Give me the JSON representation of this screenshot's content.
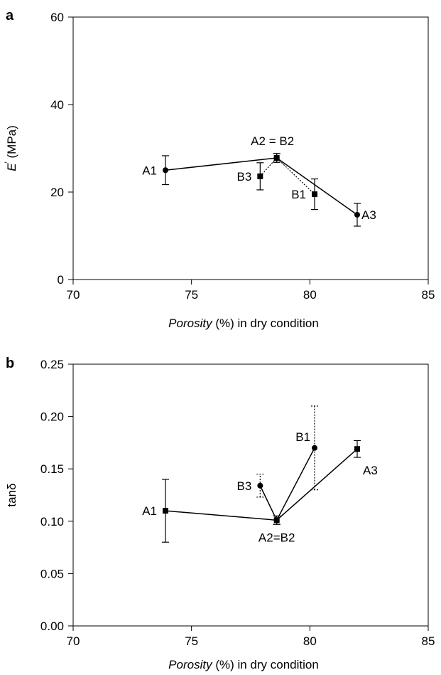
{
  "chart_data": [
    {
      "panel": "a",
      "type": "scatter",
      "xlabel_italic": "Porosity",
      "xlabel_rest": " (%) in dry condition",
      "ylabel_symbol": "E",
      "ylabel_prime": "′",
      "ylabel_rest": " (MPa)",
      "xlim": [
        70,
        85
      ],
      "ylim": [
        0,
        60
      ],
      "xticks": [
        "70",
        "75",
        "80",
        "85"
      ],
      "yticks": [
        "0",
        "20",
        "40",
        "60"
      ],
      "series": [
        {
          "marker": "circle",
          "line": "solid",
          "points": [
            {
              "x": 73.9,
              "y": 25.0,
              "err": 3.3
            },
            {
              "x": 78.6,
              "y": 27.8,
              "err": 1.0
            },
            {
              "x": 82.0,
              "y": 14.8,
              "err": 2.6
            }
          ]
        },
        {
          "marker": "square",
          "line": "dotted",
          "points": [
            {
              "x": 77.9,
              "y": 23.6,
              "err": 3.1
            },
            {
              "x": 78.6,
              "y": 27.8,
              "err": 1.0
            },
            {
              "x": 80.2,
              "y": 19.5,
              "err": 3.5
            }
          ]
        }
      ],
      "annotations": [
        {
          "text": "A1",
          "x": 73.9,
          "y": 25.0,
          "anchor": "left"
        },
        {
          "text": "A2 = B2",
          "x": 78.6,
          "y": 27.8,
          "anchor": "above"
        },
        {
          "text": "B3",
          "x": 77.9,
          "y": 23.6,
          "anchor": "left"
        },
        {
          "text": "B1",
          "x": 80.2,
          "y": 19.5,
          "anchor": "left"
        },
        {
          "text": "A3",
          "x": 82.0,
          "y": 14.8,
          "anchor": "right"
        }
      ]
    },
    {
      "panel": "b",
      "type": "scatter",
      "xlabel_italic": "Porosity",
      "xlabel_rest": " (%) in dry condition",
      "ylabel": "tanδ",
      "xlim": [
        70,
        85
      ],
      "ylim": [
        0,
        0.25
      ],
      "xticks": [
        "70",
        "75",
        "80",
        "85"
      ],
      "yticks": [
        "0.00",
        "0.05",
        "0.10",
        "0.15",
        "0.20",
        "0.25"
      ],
      "series": [
        {
          "marker": "square",
          "line": "solid",
          "errstyle": "solid",
          "points": [
            {
              "x": 73.9,
              "y": 0.11,
              "err": 0.03
            },
            {
              "x": 78.6,
              "y": 0.101,
              "err": 0.004
            },
            {
              "x": 82.0,
              "y": 0.169,
              "err": 0.008
            }
          ]
        },
        {
          "marker": "circle",
          "line": "solid",
          "errstyle": "dotted",
          "points": [
            {
              "x": 77.9,
              "y": 0.134,
              "err": 0.011
            },
            {
              "x": 78.6,
              "y": 0.101,
              "err": 0.004
            },
            {
              "x": 80.2,
              "y": 0.17,
              "err": 0.04
            }
          ]
        }
      ],
      "annotations": [
        {
          "text": "A1",
          "x": 73.9,
          "y": 0.11,
          "anchor": "left"
        },
        {
          "text": "A2=B2",
          "x": 78.6,
          "y": 0.101,
          "anchor": "below"
        },
        {
          "text": "B3",
          "x": 77.9,
          "y": 0.134,
          "anchor": "left"
        },
        {
          "text": "B1",
          "x": 80.2,
          "y": 0.17,
          "anchor": "upleft"
        },
        {
          "text": "A3",
          "x": 82.0,
          "y": 0.169,
          "anchor": "belowright"
        }
      ]
    }
  ]
}
